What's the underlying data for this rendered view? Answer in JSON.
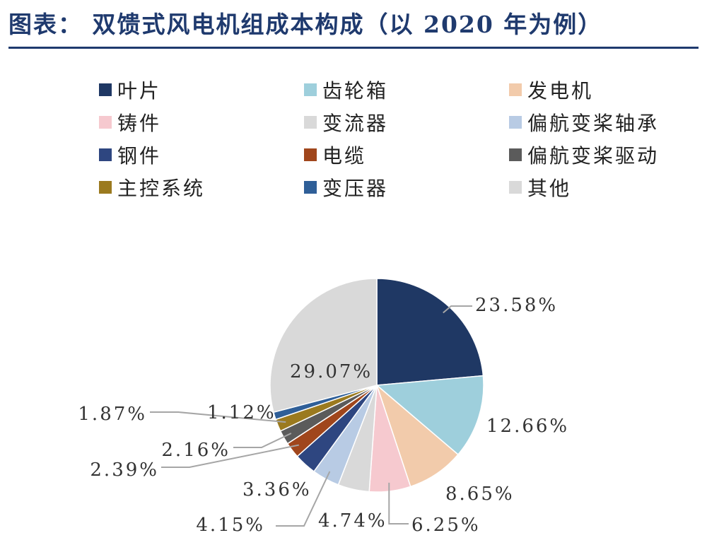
{
  "title": "图表： 双馈式风电机组成本构成（以 2020 年为例）",
  "chart_data": {
    "type": "pie",
    "title": "",
    "legend_position": "top",
    "slices": [
      {
        "name": "叶片",
        "value": 23.58,
        "label": "23.58%",
        "color": "#1f3864"
      },
      {
        "name": "齿轮箱",
        "value": 12.66,
        "label": "12.66%",
        "color": "#9ecfdc"
      },
      {
        "name": "发电机",
        "value": 8.65,
        "label": "8.65%",
        "color": "#f2cbab"
      },
      {
        "name": "铸件",
        "value": 6.25,
        "label": "6.25%",
        "color": "#f6c9cf"
      },
      {
        "name": "变流器",
        "value": 4.74,
        "label": "4.74%",
        "color": "#d9d9d9"
      },
      {
        "name": "偏航变桨轴承",
        "value": 4.15,
        "label": "4.15%",
        "color": "#b8cbe4"
      },
      {
        "name": "钢件",
        "value": 3.36,
        "label": "3.36%",
        "color": "#2e4680"
      },
      {
        "name": "电缆",
        "value": 2.39,
        "label": "2.39%",
        "color": "#a0461c"
      },
      {
        "name": "偏航变桨驱动",
        "value": 2.16,
        "label": "2.16%",
        "color": "#5b5b5b"
      },
      {
        "name": "主控系统",
        "value": 1.87,
        "label": "1.87%",
        "color": "#9b7a1f"
      },
      {
        "name": "变压器",
        "value": 1.12,
        "label": "1.12%",
        "color": "#2f5f98"
      },
      {
        "name": "其他",
        "value": 29.07,
        "label": "29.07%",
        "color": "#d9d9d9"
      }
    ]
  }
}
